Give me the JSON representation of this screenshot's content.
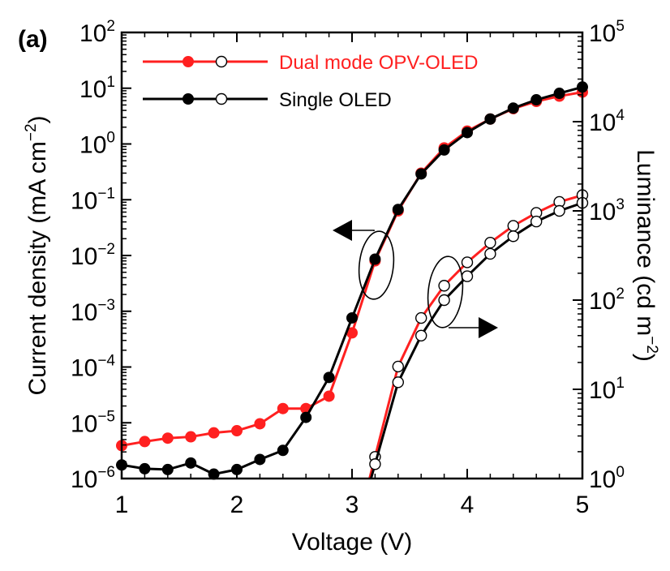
{
  "panel_label": "(a)",
  "chart_data": {
    "type": "line",
    "xlabel": "Voltage (V)",
    "ylabel_left": {
      "text": "Current density (mA cm",
      "sup": "−2",
      "close": ")"
    },
    "ylabel_right": {
      "text": "Luminance (cd m",
      "sup": "−2",
      "close": ")"
    },
    "xlim": [
      1,
      5
    ],
    "x_ticks": [
      "1",
      "2",
      "3",
      "4",
      "5"
    ],
    "y_left_scale": "log",
    "y_left_lim": [
      1e-06,
      100
    ],
    "y_left_ticks": [
      {
        "base": "10",
        "exp": "-6"
      },
      {
        "base": "10",
        "exp": "-5"
      },
      {
        "base": "10",
        "exp": "-4"
      },
      {
        "base": "10",
        "exp": "-3"
      },
      {
        "base": "10",
        "exp": "-2"
      },
      {
        "base": "10",
        "exp": "-1"
      },
      {
        "base": "10",
        "exp": "0"
      },
      {
        "base": "10",
        "exp": "1"
      },
      {
        "base": "10",
        "exp": "2"
      }
    ],
    "y_right_scale": "log",
    "y_right_lim": [
      1,
      100000
    ],
    "y_right_ticks": [
      {
        "base": "10",
        "exp": "0"
      },
      {
        "base": "10",
        "exp": "1"
      },
      {
        "base": "10",
        "exp": "2"
      },
      {
        "base": "10",
        "exp": "3"
      },
      {
        "base": "10",
        "exp": "4"
      },
      {
        "base": "10",
        "exp": "5"
      }
    ],
    "legend": [
      {
        "label": "Dual mode OPV-OLED",
        "color": "#ff2020"
      },
      {
        "label": "Single OLED",
        "color": "#000000"
      }
    ],
    "series": [
      {
        "name": "Dual mode OPV-OLED",
        "axis": "left",
        "marker": "filled",
        "color": "#ff2020",
        "x": [
          1.0,
          1.2,
          1.4,
          1.6,
          1.8,
          2.0,
          2.2,
          2.4,
          2.6,
          2.8,
          3.0,
          3.2,
          3.4,
          3.6,
          3.8,
          4.0,
          4.2,
          4.4,
          4.6,
          4.8,
          5.0
        ],
        "y": [
          3.9e-06,
          4.6e-06,
          5.3e-06,
          5.6e-06,
          6.6e-06,
          7.2e-06,
          9.6e-06,
          1.8e-05,
          1.8e-05,
          3e-05,
          0.00041,
          0.008,
          0.063,
          0.3,
          0.85,
          1.7,
          2.8,
          4.3,
          5.8,
          7.2,
          8.5
        ]
      },
      {
        "name": "Single OLED",
        "axis": "left",
        "marker": "filled",
        "color": "#000000",
        "x": [
          1.0,
          1.2,
          1.4,
          1.6,
          1.8,
          2.0,
          2.2,
          2.4,
          2.6,
          2.8,
          3.0,
          3.2,
          3.4,
          3.6,
          3.8,
          4.0,
          4.2,
          4.4,
          4.6,
          4.8,
          5.0
        ],
        "y": [
          1.75e-06,
          1.5e-06,
          1.45e-06,
          1.9e-06,
          1.2e-06,
          1.45e-06,
          2.2e-06,
          3.2e-06,
          1.25e-05,
          6.5e-05,
          0.00076,
          0.0086,
          0.067,
          0.29,
          0.78,
          1.6,
          2.8,
          4.4,
          6.2,
          8.1,
          10.5
        ]
      },
      {
        "name": "Dual mode OPV-OLED",
        "axis": "right",
        "marker": "open",
        "color": "#ff2020",
        "x": [
          3.2,
          3.4,
          3.6,
          3.8,
          4.0,
          4.2,
          4.4,
          4.6,
          4.8,
          5.0
        ],
        "y": [
          1.75,
          18,
          63,
          145,
          265,
          440,
          680,
          950,
          1260,
          1500
        ]
      },
      {
        "name": "Single OLED",
        "axis": "right",
        "marker": "open",
        "color": "#000000",
        "x": [
          3.2,
          3.4,
          3.6,
          3.8,
          4.0,
          4.2,
          4.4,
          4.6,
          4.8,
          5.0
        ],
        "y": [
          1.45,
          12,
          40,
          100,
          185,
          330,
          520,
          760,
          1000,
          1230
        ]
      }
    ],
    "annotations": [
      {
        "type": "ellipse-arrow",
        "target_axis": "left",
        "direction": "left"
      },
      {
        "type": "ellipse-arrow",
        "target_axis": "right",
        "direction": "right"
      }
    ]
  }
}
